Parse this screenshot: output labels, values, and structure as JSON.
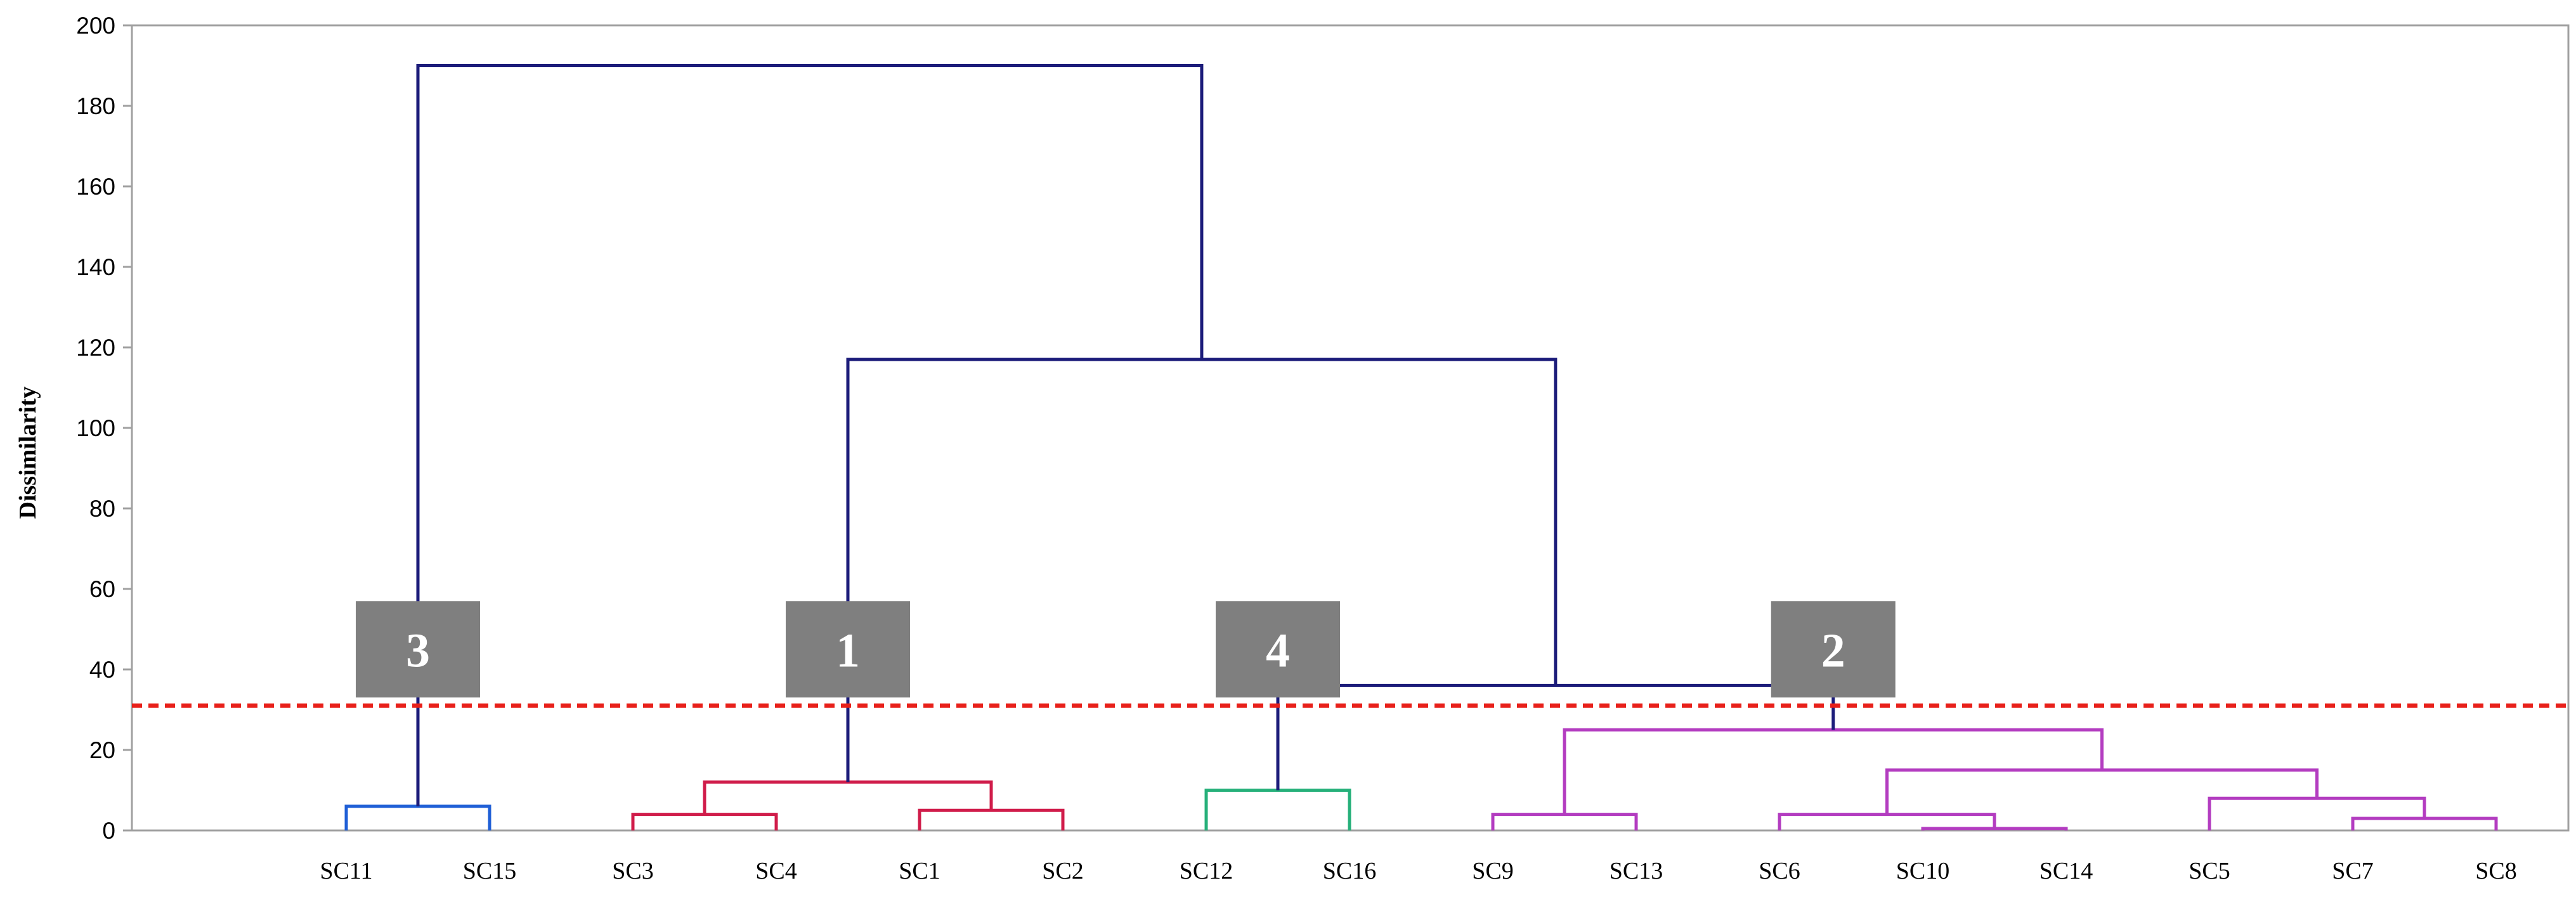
{
  "chart_data": {
    "type": "dendrogram",
    "ylabel": "Dissimilarity",
    "ylim": [
      0,
      200
    ],
    "yticks": [
      0,
      20,
      40,
      60,
      80,
      100,
      120,
      140,
      160,
      180,
      200
    ],
    "leaves": [
      "SC11",
      "SC15",
      "SC3",
      "SC4",
      "SC1",
      "SC2",
      "SC12",
      "SC16",
      "SC9",
      "SC13",
      "SC6",
      "SC10",
      "SC14",
      "SC5",
      "SC7",
      "SC8"
    ],
    "cut_line": {
      "value": 31,
      "color": "#e8201a"
    },
    "merges": [
      {
        "left": "SC11",
        "right": "SC15",
        "height": 6,
        "color": "#1f5fd6"
      },
      {
        "left": "SC3",
        "right": "SC4",
        "height": 4,
        "color": "#d01c4a"
      },
      {
        "left": "SC1",
        "right": "SC2",
        "height": 5,
        "color": "#d01c4a"
      },
      {
        "left": "SC3+SC4",
        "right": "SC1+SC2",
        "height": 12,
        "color": "#d01c4a"
      },
      {
        "left": "SC12",
        "right": "SC16",
        "height": 10,
        "color": "#26b07a"
      },
      {
        "left": "SC9",
        "right": "SC13",
        "height": 4,
        "color": "#b33cc0"
      },
      {
        "left": "SC10",
        "right": "SC14",
        "height": 0.5,
        "color": "#b33cc0"
      },
      {
        "left": "SC6",
        "right": "SC10+SC14",
        "height": 4,
        "color": "#b33cc0"
      },
      {
        "left": "SC7",
        "right": "SC8",
        "height": 3,
        "color": "#b33cc0"
      },
      {
        "left": "SC5",
        "right": "SC7+SC8",
        "height": 8,
        "color": "#b33cc0"
      },
      {
        "left": "SC6+SC10+SC14",
        "right": "SC5+SC7+SC8",
        "height": 15,
        "color": "#b33cc0"
      },
      {
        "left": "SC9+SC13",
        "right": "SC6+SC10+SC14+SC5+SC7+SC8",
        "height": 25,
        "color": "#b33cc0"
      },
      {
        "left": "cluster 4",
        "right": "cluster 2",
        "height": 36,
        "color": "#1c1c7a"
      },
      {
        "left": "cluster 1",
        "right": "cluster 4+2",
        "height": 117,
        "color": "#1c1c7a"
      },
      {
        "left": "cluster 3",
        "right": "cluster 1+4+2",
        "height": 190,
        "color": "#1c1c7a"
      }
    ],
    "cluster_labels": [
      {
        "label": "3",
        "value": 45
      },
      {
        "label": "1",
        "value": 45
      },
      {
        "label": "4",
        "value": 45
      },
      {
        "label": "2",
        "value": 45
      }
    ],
    "badge_color": "#7f7f7f",
    "frame_color": "#a0a0a0"
  }
}
